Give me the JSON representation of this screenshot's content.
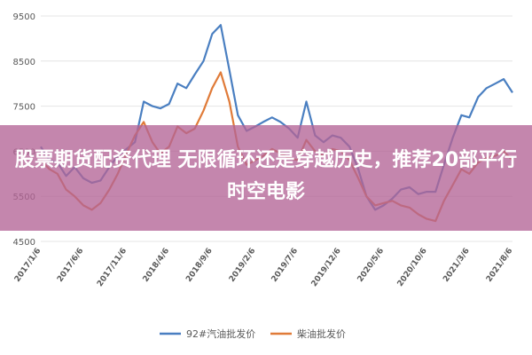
{
  "overlay": {
    "caption": "股票期货配资代理 无限循环还是穿越历史，推荐20部平行时空电影"
  },
  "colors": {
    "series_a": "#4a7fc1",
    "series_b": "#e07b39",
    "grid": "#e4e4e4",
    "axis_text": "#595959"
  },
  "chart_data": {
    "type": "line",
    "title": "",
    "xlabel": "",
    "ylabel": "",
    "ylim": [
      4500,
      9500
    ],
    "yticks": [
      4500,
      5500,
      6500,
      7500,
      8500,
      9500
    ],
    "xlim": [
      "2017-01-06",
      "2021-08-06"
    ],
    "xticks": [
      "2017/1/6",
      "2017/6/6",
      "2017/11/6",
      "2018/4/6",
      "2018/9/6",
      "2019/2/6",
      "2019/7/6",
      "2019/12/6",
      "2020/5/6",
      "2020/10/6",
      "2021/3/6",
      "2021/8/6"
    ],
    "legend_position": "bottom",
    "grid": "horizontal",
    "series": [
      {
        "name": "92#汽油批发价",
        "points": [
          [
            "2017-01-06",
            6600
          ],
          [
            "2017-02-06",
            6300
          ],
          [
            "2017-03-06",
            6250
          ],
          [
            "2017-04-06",
            5950
          ],
          [
            "2017-05-06",
            6150
          ],
          [
            "2017-06-06",
            5900
          ],
          [
            "2017-07-06",
            5800
          ],
          [
            "2017-08-06",
            5850
          ],
          [
            "2017-09-06",
            6150
          ],
          [
            "2017-10-06",
            6400
          ],
          [
            "2017-11-06",
            6550
          ],
          [
            "2017-12-06",
            6700
          ],
          [
            "2018-01-06",
            7600
          ],
          [
            "2018-02-06",
            7500
          ],
          [
            "2018-03-06",
            7450
          ],
          [
            "2018-04-06",
            7550
          ],
          [
            "2018-05-06",
            8000
          ],
          [
            "2018-06-06",
            7900
          ],
          [
            "2018-07-06",
            8200
          ],
          [
            "2018-08-06",
            8500
          ],
          [
            "2018-09-06",
            9100
          ],
          [
            "2018-10-06",
            9300
          ],
          [
            "2018-11-06",
            8300
          ],
          [
            "2018-12-06",
            7300
          ],
          [
            "2019-01-06",
            6950
          ],
          [
            "2019-02-06",
            7050
          ],
          [
            "2019-03-06",
            7150
          ],
          [
            "2019-04-06",
            7250
          ],
          [
            "2019-05-06",
            7150
          ],
          [
            "2019-06-06",
            7000
          ],
          [
            "2019-07-06",
            6800
          ],
          [
            "2019-08-06",
            7600
          ],
          [
            "2019-09-06",
            6850
          ],
          [
            "2019-10-06",
            6700
          ],
          [
            "2019-11-06",
            6850
          ],
          [
            "2019-12-06",
            6800
          ],
          [
            "2020-01-06",
            6600
          ],
          [
            "2020-02-06",
            6100
          ],
          [
            "2020-03-06",
            5500
          ],
          [
            "2020-04-06",
            5200
          ],
          [
            "2020-05-06",
            5300
          ],
          [
            "2020-06-06",
            5450
          ],
          [
            "2020-07-06",
            5650
          ],
          [
            "2020-08-06",
            5700
          ],
          [
            "2020-09-06",
            5550
          ],
          [
            "2020-10-06",
            5600
          ],
          [
            "2020-11-06",
            5600
          ],
          [
            "2020-12-06",
            6200
          ],
          [
            "2021-01-06",
            6800
          ],
          [
            "2021-02-06",
            7300
          ],
          [
            "2021-03-06",
            7250
          ],
          [
            "2021-04-06",
            7700
          ],
          [
            "2021-05-06",
            7900
          ],
          [
            "2021-06-06",
            8000
          ],
          [
            "2021-07-06",
            8100
          ],
          [
            "2021-08-06",
            7800
          ]
        ]
      },
      {
        "name": "柴油批发价",
        "points": [
          [
            "2017-01-06",
            6300
          ],
          [
            "2017-02-06",
            6100
          ],
          [
            "2017-03-06",
            6000
          ],
          [
            "2017-04-06",
            5650
          ],
          [
            "2017-05-06",
            5500
          ],
          [
            "2017-06-06",
            5300
          ],
          [
            "2017-07-06",
            5200
          ],
          [
            "2017-08-06",
            5350
          ],
          [
            "2017-09-06",
            5650
          ],
          [
            "2017-10-06",
            6000
          ],
          [
            "2017-11-06",
            6450
          ],
          [
            "2017-12-06",
            6850
          ],
          [
            "2018-01-06",
            7150
          ],
          [
            "2018-02-06",
            6700
          ],
          [
            "2018-03-06",
            6450
          ],
          [
            "2018-04-06",
            6600
          ],
          [
            "2018-05-06",
            7050
          ],
          [
            "2018-06-06",
            6900
          ],
          [
            "2018-07-06",
            7000
          ],
          [
            "2018-08-06",
            7400
          ],
          [
            "2018-09-06",
            7900
          ],
          [
            "2018-10-06",
            8250
          ],
          [
            "2018-11-06",
            7600
          ],
          [
            "2018-12-06",
            6600
          ],
          [
            "2019-01-06",
            6200
          ],
          [
            "2019-02-06",
            6300
          ],
          [
            "2019-03-06",
            6400
          ],
          [
            "2019-04-06",
            6550
          ],
          [
            "2019-05-06",
            6450
          ],
          [
            "2019-06-06",
            6350
          ],
          [
            "2019-07-06",
            6300
          ],
          [
            "2019-08-06",
            6750
          ],
          [
            "2019-09-06",
            6500
          ],
          [
            "2019-10-06",
            6400
          ],
          [
            "2019-11-06",
            6550
          ],
          [
            "2019-12-06",
            6500
          ],
          [
            "2020-01-06",
            6300
          ],
          [
            "2020-02-06",
            5900
          ],
          [
            "2020-03-06",
            5500
          ],
          [
            "2020-04-06",
            5300
          ],
          [
            "2020-05-06",
            5350
          ],
          [
            "2020-06-06",
            5400
          ],
          [
            "2020-07-06",
            5300
          ],
          [
            "2020-08-06",
            5250
          ],
          [
            "2020-09-06",
            5100
          ],
          [
            "2020-10-06",
            5000
          ],
          [
            "2020-11-06",
            4950
          ],
          [
            "2020-12-06",
            5400
          ],
          [
            "2021-01-06",
            5750
          ],
          [
            "2021-02-06",
            6100
          ],
          [
            "2021-03-06",
            6000
          ],
          [
            "2021-04-06",
            6250
          ],
          [
            "2021-05-06",
            6350
          ],
          [
            "2021-06-06",
            6400
          ],
          [
            "2021-07-06",
            6500
          ],
          [
            "2021-08-06",
            6300
          ]
        ]
      }
    ]
  }
}
